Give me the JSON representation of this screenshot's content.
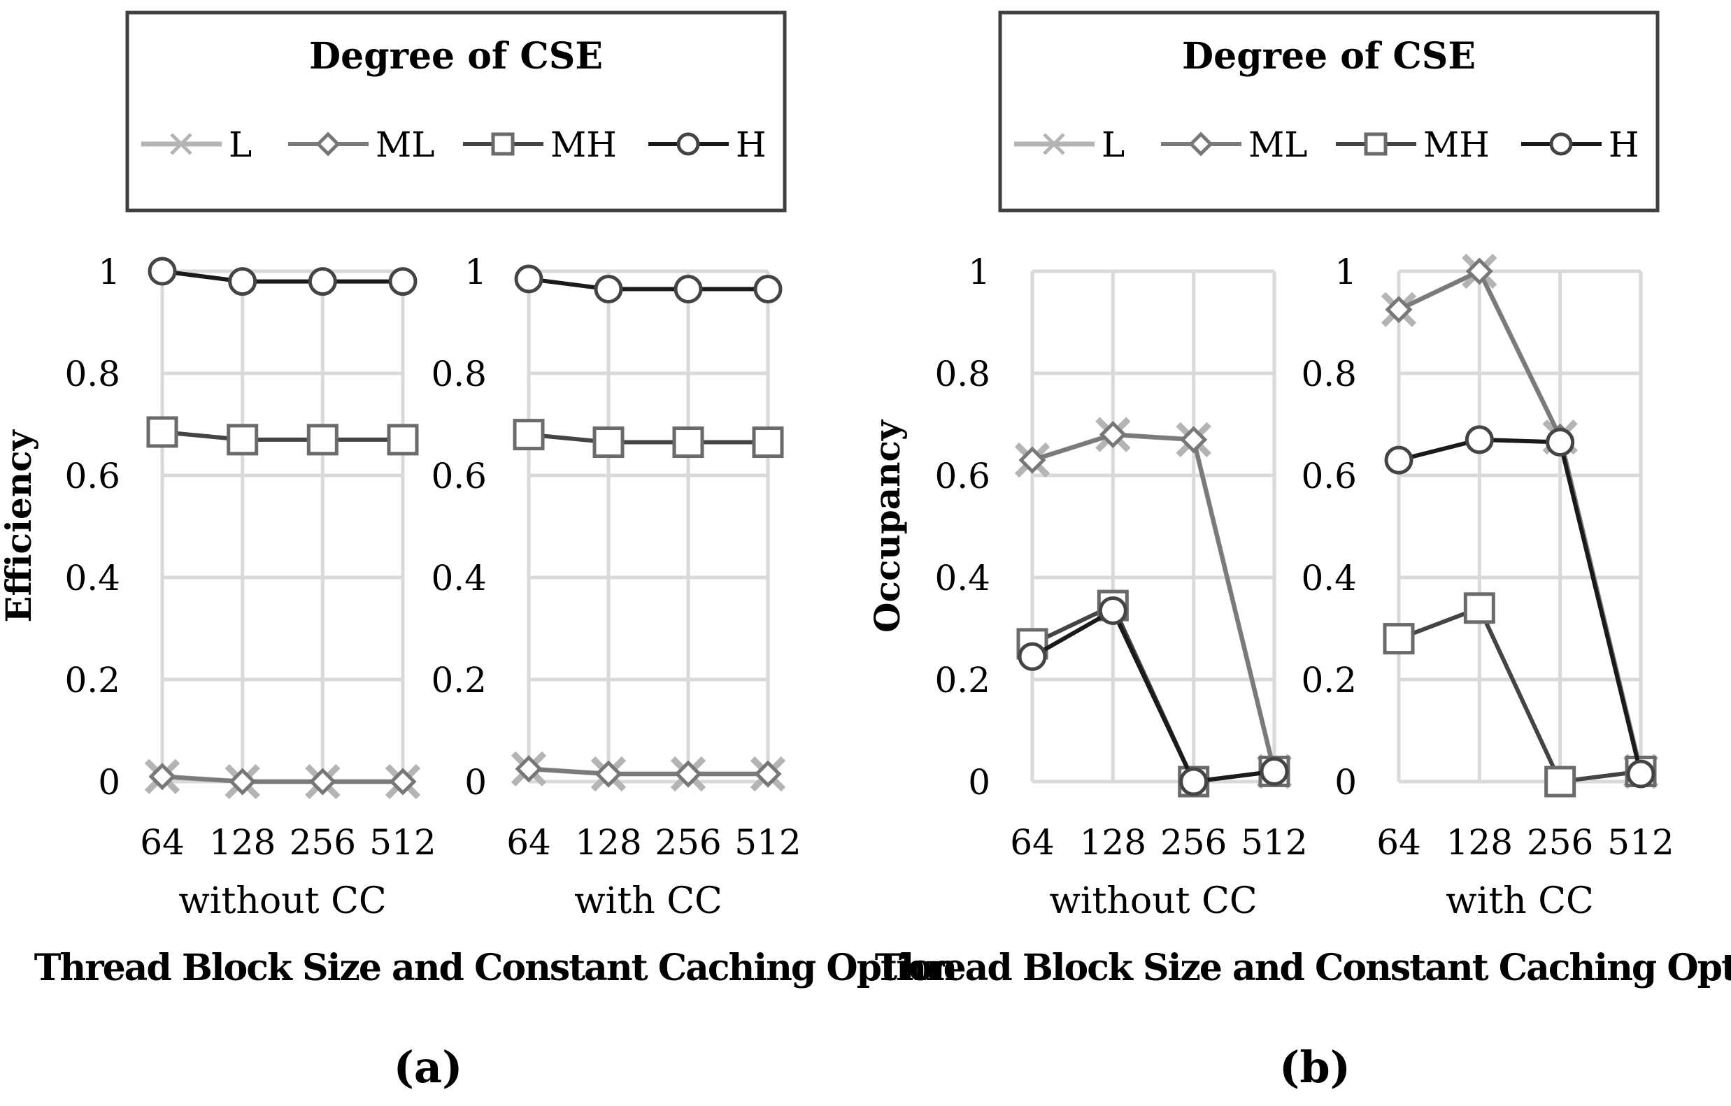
{
  "chart_data": [
    {
      "panel_label": "(a)",
      "type": "line",
      "legend": {
        "title": "Degree of CSE",
        "entries": [
          {
            "name": "L",
            "marker": "x",
            "color": "#b4b4b4"
          },
          {
            "name": "ML",
            "marker": "diamond",
            "color": "#7a7a7a"
          },
          {
            "name": "MH",
            "marker": "square",
            "color": "#444444"
          },
          {
            "name": "H",
            "marker": "circle",
            "color": "#1a1a1a"
          }
        ]
      },
      "ylabel": "Efficiency",
      "xlabel": "Thread Block Size and Constant Caching Option",
      "ylim": [
        0,
        1
      ],
      "yticks": [
        "0",
        "0.2",
        "0.4",
        "0.6",
        "0.8",
        "1"
      ],
      "groups": [
        {
          "name": "without CC",
          "categories": [
            "64",
            "128",
            "256",
            "512"
          ],
          "series": [
            {
              "name": "L",
              "values": [
                0.01,
                0.0,
                0.0,
                0.0
              ]
            },
            {
              "name": "ML",
              "values": [
                0.01,
                0.0,
                0.0,
                0.0
              ]
            },
            {
              "name": "MH",
              "values": [
                0.685,
                0.67,
                0.67,
                0.67
              ]
            },
            {
              "name": "H",
              "values": [
                1.0,
                0.98,
                0.98,
                0.98
              ]
            }
          ]
        },
        {
          "name": "with CC",
          "categories": [
            "64",
            "128",
            "256",
            "512"
          ],
          "series": [
            {
              "name": "L",
              "values": [
                0.025,
                0.015,
                0.015,
                0.015
              ]
            },
            {
              "name": "ML",
              "values": [
                0.025,
                0.015,
                0.015,
                0.015
              ]
            },
            {
              "name": "MH",
              "values": [
                0.68,
                0.665,
                0.665,
                0.665
              ]
            },
            {
              "name": "H",
              "values": [
                0.985,
                0.965,
                0.965,
                0.965
              ]
            }
          ]
        }
      ]
    },
    {
      "panel_label": "(b)",
      "type": "line",
      "legend": {
        "title": "Degree of CSE",
        "entries": [
          {
            "name": "L",
            "marker": "x",
            "color": "#b4b4b4"
          },
          {
            "name": "ML",
            "marker": "diamond",
            "color": "#7a7a7a"
          },
          {
            "name": "MH",
            "marker": "square",
            "color": "#444444"
          },
          {
            "name": "H",
            "marker": "circle",
            "color": "#1a1a1a"
          }
        ]
      },
      "ylabel": "Occupancy",
      "xlabel": "Thread Block Size and Constant Caching Option",
      "ylim": [
        0,
        1
      ],
      "yticks": [
        "0",
        "0.2",
        "0.4",
        "0.6",
        "0.8",
        "1"
      ],
      "groups": [
        {
          "name": "without CC",
          "categories": [
            "64",
            "128",
            "256",
            "512"
          ],
          "series": [
            {
              "name": "L",
              "values": [
                0.63,
                0.68,
                0.67,
                0.02
              ]
            },
            {
              "name": "ML",
              "values": [
                0.63,
                0.68,
                0.67,
                0.02
              ]
            },
            {
              "name": "MH",
              "values": [
                0.27,
                0.345,
                0.0,
                0.02
              ]
            },
            {
              "name": "H",
              "values": [
                0.245,
                0.335,
                0.0,
                0.02
              ]
            }
          ]
        },
        {
          "name": "with CC",
          "categories": [
            "64",
            "128",
            "256",
            "512"
          ],
          "series": [
            {
              "name": "L",
              "values": [
                0.925,
                1.0,
                0.675,
                0.02
              ]
            },
            {
              "name": "ML",
              "values": [
                0.925,
                1.0,
                0.675,
                0.02
              ]
            },
            {
              "name": "MH",
              "values": [
                0.28,
                0.34,
                0.0,
                0.02
              ]
            },
            {
              "name": "H",
              "values": [
                0.63,
                0.67,
                0.665,
                0.015
              ]
            }
          ]
        }
      ]
    }
  ]
}
